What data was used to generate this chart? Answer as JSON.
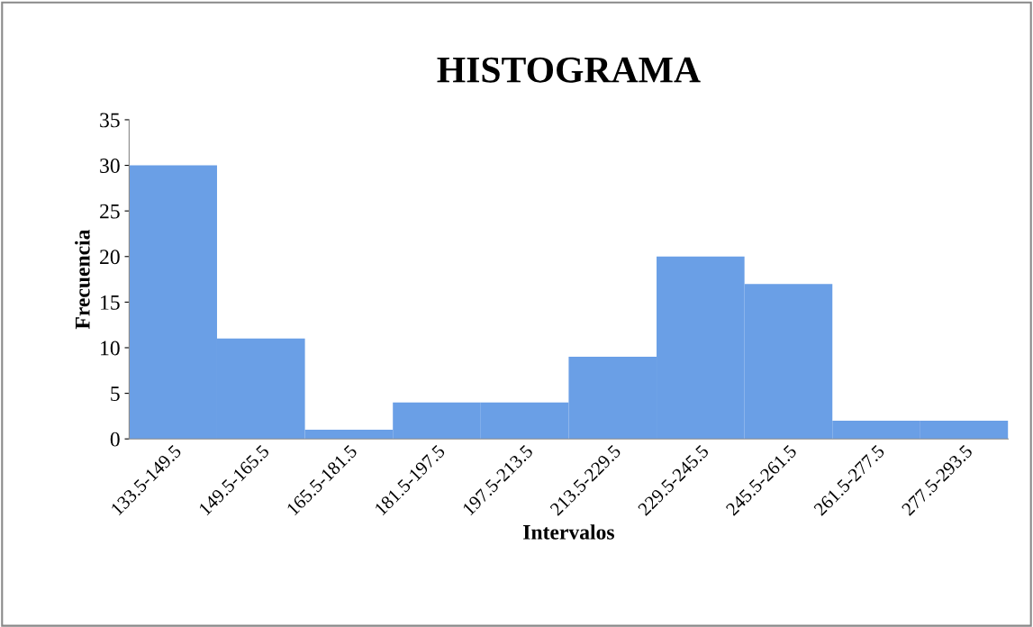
{
  "chart_data": {
    "type": "bar",
    "title": "HISTOGRAMA",
    "xlabel": "Intervalos",
    "ylabel": "Frecuencia",
    "categories": [
      "133.5-149.5",
      "149.5-165.5",
      "165.5-181.5",
      "181.5-197.5",
      "197.5-213.5",
      "213.5-229.5",
      "229.5-245.5",
      "245.5-261.5",
      "261.5-277.5",
      "277.5-293.5"
    ],
    "values": [
      30,
      11,
      1,
      4,
      4,
      9,
      20,
      17,
      2,
      2
    ],
    "color": "#6a9fe6",
    "ylim": [
      0,
      35
    ],
    "yticks": [
      0,
      5,
      10,
      15,
      20,
      25,
      30,
      35
    ],
    "grid": false,
    "legend": false
  }
}
